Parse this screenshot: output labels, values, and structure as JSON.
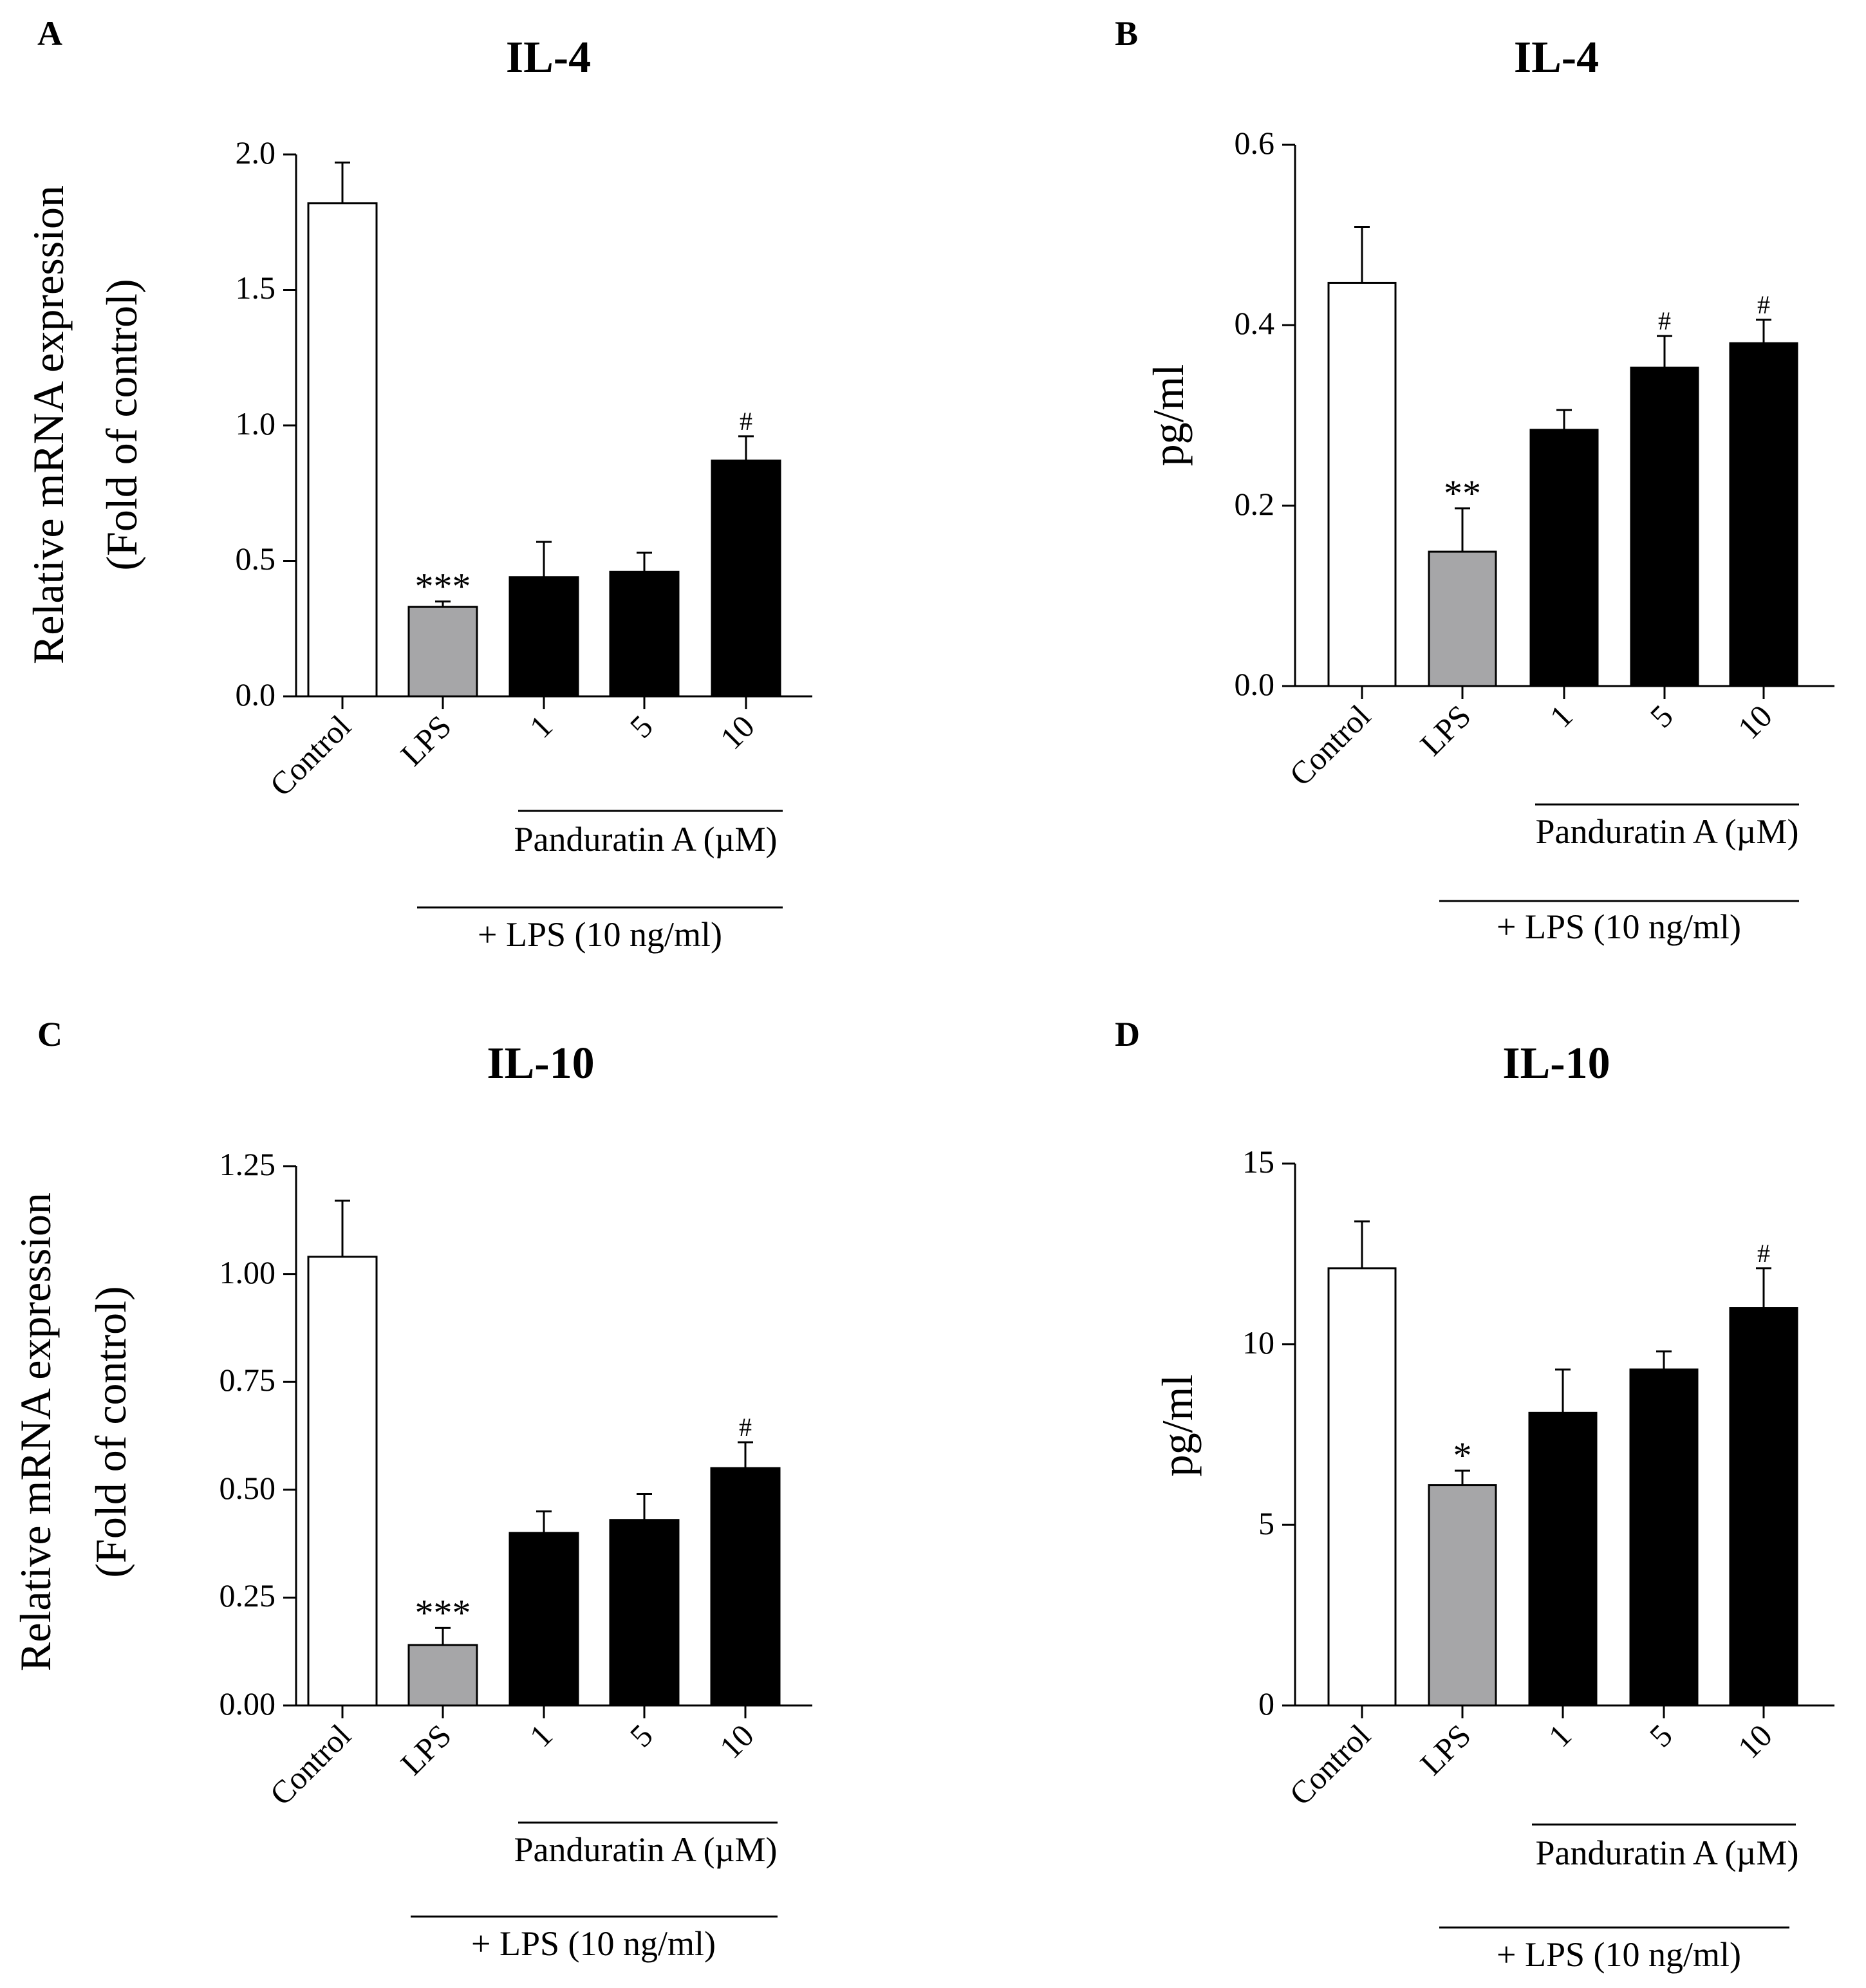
{
  "colors": {
    "control_fill": "#ffffff",
    "lps_fill": "#a6a6a8",
    "treatment_fill": "#000000",
    "axis": "#000000"
  },
  "shared": {
    "categories": [
      "Control",
      "LPS",
      "1",
      "5",
      "10"
    ],
    "bracket_inner_label": "Panduratin A (µM)",
    "bracket_outer_label": "+ LPS (10 ng/ml)"
  },
  "chart_data": [
    {
      "panel": "A",
      "type": "bar",
      "title": "IL-4",
      "ylabel_line1": "Relative mRNA expression",
      "ylabel_line2": "(Fold of control)",
      "ylim": [
        0,
        2.0
      ],
      "yticks": [
        "0.0",
        "0.5",
        "1.0",
        "1.5",
        "2.0"
      ],
      "categories": [
        "Control",
        "LPS",
        "1",
        "5",
        "10"
      ],
      "values": [
        1.82,
        0.33,
        0.44,
        0.46,
        0.87
      ],
      "errors": [
        0.15,
        0.02,
        0.13,
        0.07,
        0.09
      ],
      "annotations": [
        "",
        "***",
        "",
        "",
        "#"
      ]
    },
    {
      "panel": "B",
      "type": "bar",
      "title": "IL-4",
      "ylabel_line1": "pg/ml",
      "ylabel_line2": "",
      "ylim": [
        0,
        0.6
      ],
      "yticks": [
        "0.0",
        "0.2",
        "0.4",
        "0.6"
      ],
      "categories": [
        "Control",
        "LPS",
        "1",
        "5",
        "10"
      ],
      "values": [
        0.447,
        0.149,
        0.284,
        0.353,
        0.38
      ],
      "errors": [
        0.062,
        0.048,
        0.022,
        0.035,
        0.026
      ],
      "annotations": [
        "",
        "**",
        "",
        "#",
        "#"
      ]
    },
    {
      "panel": "C",
      "type": "bar",
      "title": "IL-10",
      "ylabel_line1": "Relative mRNA expression",
      "ylabel_line2": "(Fold of control)",
      "ylim": [
        0,
        1.25
      ],
      "yticks": [
        "0.00",
        "0.25",
        "0.50",
        "0.75",
        "1.00",
        "1.25"
      ],
      "categories": [
        "Control",
        "LPS",
        "1",
        "5",
        "10"
      ],
      "values": [
        1.04,
        0.14,
        0.4,
        0.43,
        0.55
      ],
      "errors": [
        0.13,
        0.04,
        0.05,
        0.06,
        0.06
      ],
      "annotations": [
        "",
        "***",
        "",
        "",
        "#"
      ]
    },
    {
      "panel": "D",
      "type": "bar",
      "title": "IL-10",
      "ylabel_line1": "pg/ml",
      "ylabel_line2": "",
      "ylim": [
        0,
        15
      ],
      "yticks": [
        "0",
        "5",
        "10",
        "15"
      ],
      "categories": [
        "Control",
        "LPS",
        "1",
        "5",
        "10"
      ],
      "values": [
        12.1,
        6.1,
        8.1,
        9.3,
        11.0
      ],
      "errors": [
        1.3,
        0.4,
        1.2,
        0.5,
        1.1
      ],
      "annotations": [
        "",
        "*",
        "",
        "",
        "#"
      ]
    }
  ]
}
